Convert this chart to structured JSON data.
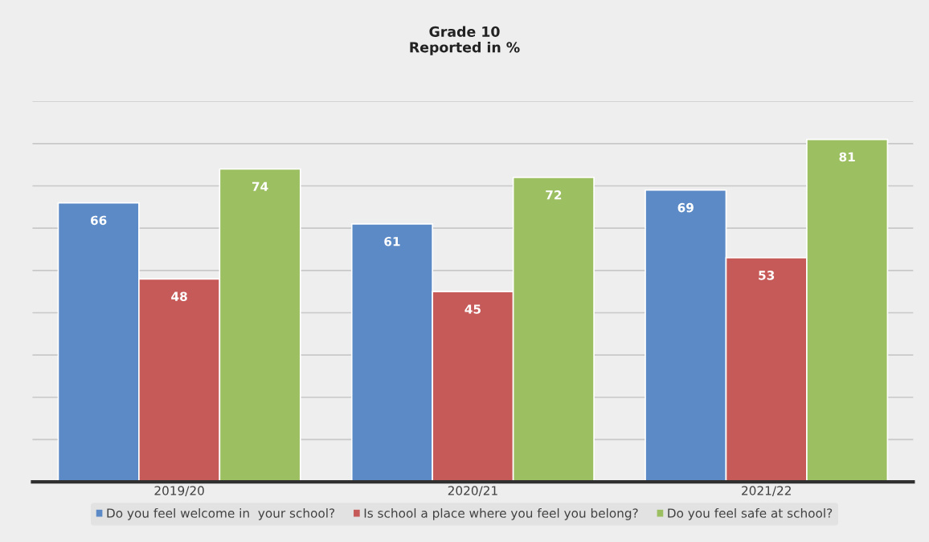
{
  "chart_data": {
    "type": "bar",
    "title": "Grade 10\nReported in %",
    "categories": [
      "2019/20",
      "2020/21",
      "2021/22"
    ],
    "series": [
      {
        "name": "Do you feel welcome in  your school?",
        "color": "#5b8ac6",
        "values": [
          66,
          61,
          69
        ]
      },
      {
        "name": "Is school a place where you feel you belong?",
        "color": "#c65a58",
        "values": [
          48,
          45,
          53
        ]
      },
      {
        "name": "Do you feel safe at school?",
        "color": "#9cbf62",
        "values": [
          74,
          72,
          81
        ]
      }
    ],
    "yticks": [
      {
        "value": 10,
        "label": null
      },
      {
        "value": 20,
        "label": null
      },
      {
        "value": 30,
        "label": null
      },
      {
        "value": 40,
        "label": null
      },
      {
        "value": 50,
        "label": null
      },
      {
        "value": 60,
        "label": null
      },
      {
        "value": 70,
        "label": null
      },
      {
        "value": 80,
        "label": null
      },
      {
        "value": 90,
        "label": null
      }
    ],
    "tick_labels": "x",
    "grid": "y",
    "legend": "bottom",
    "data_labels": true
  }
}
